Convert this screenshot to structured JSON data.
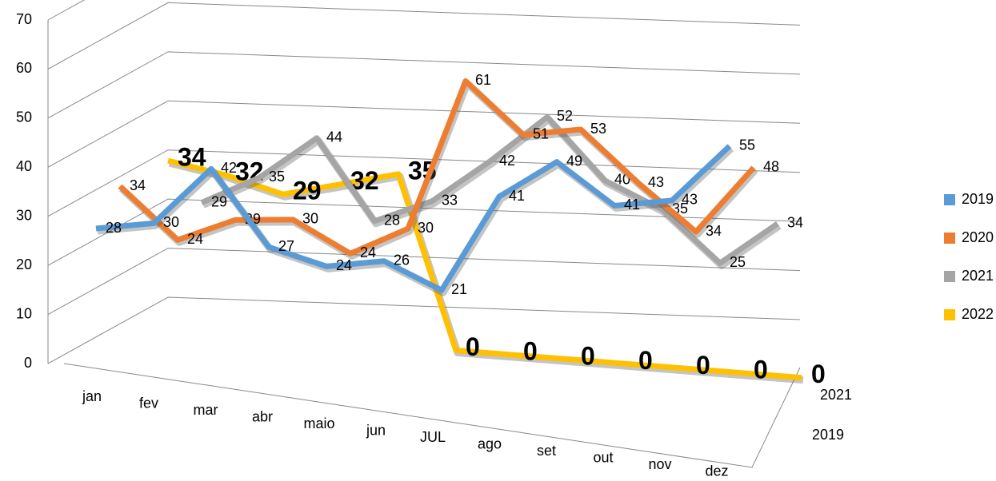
{
  "chart_data": {
    "type": "line3d",
    "categories": [
      "jan",
      "fev",
      "mar",
      "abr",
      "maio",
      "jun",
      "JUL",
      "ago",
      "set",
      "out",
      "nov",
      "dez"
    ],
    "depth_labels": [
      "2019",
      "2021"
    ],
    "series": [
      {
        "name": "2019",
        "color": "#5b9bd5",
        "values": [
          28,
          30,
          42,
          27,
          24,
          26,
          21,
          41,
          49,
          41,
          43,
          55
        ]
      },
      {
        "name": "2020",
        "color": "#ed7d31",
        "values": [
          34,
          24,
          29,
          30,
          24,
          30,
          61,
          51,
          53,
          43,
          34,
          48
        ]
      },
      {
        "name": "2021",
        "color": "#a5a5a5",
        "values": [
          null,
          29,
          35,
          44,
          28,
          33,
          42,
          52,
          40,
          35,
          25,
          34
        ]
      },
      {
        "name": "2022",
        "color": "#ffc000",
        "values": [
          34,
          32,
          29,
          32,
          35,
          0,
          0,
          0,
          0,
          0,
          0,
          0
        ]
      }
    ],
    "ylim": [
      0,
      70
    ],
    "yticks": [
      0,
      10,
      20,
      30,
      40,
      50,
      60,
      70
    ],
    "grid": true,
    "legend": "right"
  }
}
